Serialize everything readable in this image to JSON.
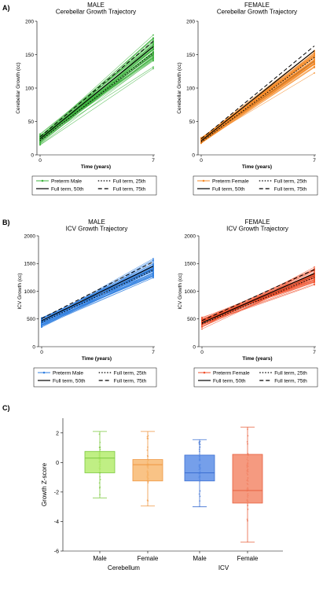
{
  "panel_labels": [
    "A)",
    "B)",
    "C)"
  ],
  "chart_data": [
    {
      "type": "line",
      "sex": "MALE",
      "title": "Cerebellar Growth Trajectory",
      "xlabel": "Time (years)",
      "ylabel": "Cerebellar Growth (cc)",
      "x_ticks": [
        "0",
        "7"
      ],
      "ylim": [
        0,
        200
      ],
      "y_ticks": [
        0,
        50,
        100,
        150,
        200
      ],
      "grid": false,
      "colors": {
        "preterm": "#3db33d",
        "full_term": "#000000"
      },
      "preterm_range": {
        "start": [
          13,
          33
        ],
        "end": [
          125,
          185
        ]
      },
      "series": [
        {
          "name": "Preterm Male",
          "values": [
            22,
            150
          ]
        },
        {
          "name": "Full term, 50th",
          "values": [
            24,
            162
          ]
        },
        {
          "name": "Full term, 25th",
          "values": [
            21,
            153
          ]
        },
        {
          "name": "Full term, 75th",
          "values": [
            27,
            170
          ]
        }
      ],
      "legend": [
        "Preterm Male",
        "Full term, 25th",
        "Full term, 50th",
        "Full term, 75th"
      ],
      "legend_placement": "below"
    },
    {
      "type": "line",
      "sex": "FEMALE",
      "title": "Cerebellar Growth Trajectory",
      "xlabel": "Time (years)",
      "ylabel": "Cerebellar Growth (cc)",
      "x_ticks": [
        "0",
        "7"
      ],
      "ylim": [
        0,
        200
      ],
      "y_ticks": [
        0,
        50,
        100,
        150,
        200
      ],
      "grid": false,
      "colors": {
        "preterm": "#f58a26",
        "full_term": "#000000"
      },
      "preterm_range": {
        "start": [
          14,
          28
        ],
        "end": [
          118,
          168
        ]
      },
      "series": [
        {
          "name": "Preterm Female",
          "values": [
            20,
            140
          ]
        },
        {
          "name": "Full term, 50th",
          "values": [
            21,
            156
          ]
        },
        {
          "name": "Full term, 25th",
          "values": [
            19,
            146
          ]
        },
        {
          "name": "Full term, 75th",
          "values": [
            24,
            163
          ]
        }
      ],
      "legend": [
        "Preterm Female",
        "Full term, 25th",
        "Full term, 50th",
        "Full term, 75th"
      ],
      "legend_placement": "below"
    },
    {
      "type": "line",
      "sex": "MALE",
      "title": "ICV Growth Trajectory",
      "xlabel": "Time (years)",
      "ylabel": "ICV Growth (cc)",
      "x_ticks": [
        "0",
        "7"
      ],
      "ylim": [
        0,
        2000
      ],
      "y_ticks": [
        0,
        500,
        1000,
        1500,
        2000
      ],
      "grid": false,
      "colors": {
        "preterm": "#2f7fe0",
        "full_term": "#000000"
      },
      "preterm_range": {
        "start": [
          320,
          580
        ],
        "end": [
          1130,
          1650
        ]
      },
      "series": [
        {
          "name": "Preterm Male",
          "values": [
            470,
            1400
          ]
        },
        {
          "name": "Full term, 50th",
          "values": [
            470,
            1450
          ]
        },
        {
          "name": "Full term, 25th",
          "values": [
            440,
            1380
          ]
        },
        {
          "name": "Full term, 75th",
          "values": [
            510,
            1530
          ]
        }
      ],
      "legend": [
        "Preterm Male",
        "Full term, 25th",
        "Full term, 50th",
        "Full term, 75th"
      ],
      "legend_placement": "below"
    },
    {
      "type": "line",
      "sex": "FEMALE",
      "title": "ICV Growth Trajectory",
      "xlabel": "Time (years)",
      "ylabel": "ICV Growth (cc)",
      "x_ticks": [
        "0",
        "7"
      ],
      "ylim": [
        0,
        2000
      ],
      "y_ticks": [
        0,
        500,
        1000,
        1500,
        2000
      ],
      "grid": false,
      "colors": {
        "preterm": "#f0502c",
        "full_term": "#000000"
      },
      "preterm_range": {
        "start": [
          300,
          560
        ],
        "end": [
          1070,
          1480
        ]
      },
      "series": [
        {
          "name": "Preterm Female",
          "values": [
            430,
            1280
          ]
        },
        {
          "name": "Full term, 50th",
          "values": [
            430,
            1320
          ]
        },
        {
          "name": "Full term, 25th",
          "values": [
            410,
            1250
          ]
        },
        {
          "name": "Full term, 75th",
          "values": [
            470,
            1390
          ]
        }
      ],
      "legend": [
        "Preterm Female",
        "Full term, 25th",
        "Full term, 50th",
        "Full term, 75th"
      ],
      "legend_placement": "below"
    },
    {
      "type": "box",
      "ylabel": "Growth Z-score",
      "ylim": [
        -6,
        3
      ],
      "y_ticks": [
        -6,
        -4,
        -2,
        0,
        2
      ],
      "grid": false,
      "categories": [
        "Male",
        "Female",
        "Male",
        "Female"
      ],
      "groups": [
        "Cerebellum",
        "ICV"
      ],
      "boxes": [
        {
          "label": "Male",
          "group": "Cerebellum",
          "min": -2.4,
          "q1": -0.7,
          "median": 0.3,
          "q3": 0.75,
          "max": 2.1,
          "fill": "#b5ec6e",
          "stroke": "#7cc83f"
        },
        {
          "label": "Female",
          "group": "Cerebellum",
          "min": -2.95,
          "q1": -1.25,
          "median": -0.15,
          "q3": 0.2,
          "max": 2.1,
          "fill": "#f8b871",
          "stroke": "#ef9640"
        },
        {
          "label": "Male",
          "group": "ICV",
          "min": -3.0,
          "q1": -1.25,
          "median": -0.7,
          "q3": 0.5,
          "max": 1.55,
          "fill": "#5d8ee6",
          "stroke": "#3b6fd2"
        },
        {
          "label": "Female",
          "group": "ICV",
          "min": -5.4,
          "q1": -2.75,
          "median": -1.9,
          "q3": 0.55,
          "max": 2.4,
          "fill": "#f3886a",
          "stroke": "#e8603e"
        }
      ]
    }
  ]
}
